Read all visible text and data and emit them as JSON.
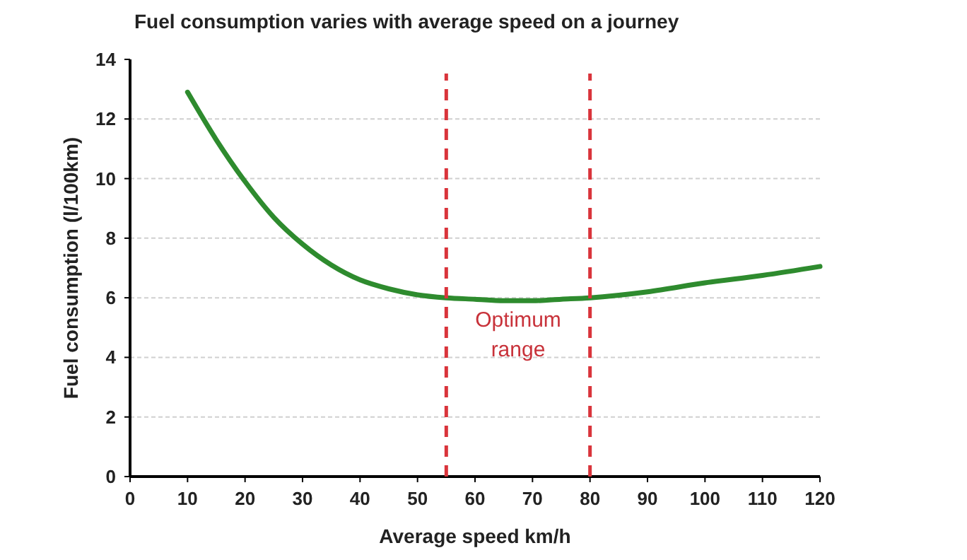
{
  "chart_data": {
    "type": "line",
    "title": "Fuel consumption varies with average speed on a journey",
    "xlabel": "Average speed km/h",
    "ylabel": "Fuel consumption (l/100km)",
    "x": [
      10,
      15,
      20,
      25,
      30,
      35,
      40,
      45,
      50,
      55,
      60,
      65,
      70,
      75,
      80,
      90,
      100,
      110,
      120
    ],
    "series": [
      {
        "color": "#2e8b2e",
        "values": [
          12.9,
          11.3,
          9.9,
          8.7,
          7.8,
          7.1,
          6.6,
          6.3,
          6.1,
          6.0,
          5.95,
          5.9,
          5.9,
          5.95,
          6.0,
          6.2,
          6.5,
          6.75,
          7.05
        ]
      }
    ],
    "xlim": [
      0,
      120
    ],
    "xticks": [
      0,
      10,
      20,
      30,
      40,
      50,
      60,
      70,
      80,
      90,
      100,
      110,
      120
    ],
    "ylim": [
      0,
      14
    ],
    "yticks": [
      0,
      2,
      4,
      6,
      8,
      10,
      12,
      14
    ],
    "grid": "y",
    "marker": "none",
    "line_style": "solid",
    "ref_lines": [
      {
        "axis": "x",
        "value": 55,
        "color": "#d9343b",
        "line_style": "dashed"
      },
      {
        "axis": "x",
        "value": 80,
        "color": "#d9343b",
        "line_style": "dashed"
      }
    ],
    "annotations": [
      "Optimum range"
    ]
  }
}
